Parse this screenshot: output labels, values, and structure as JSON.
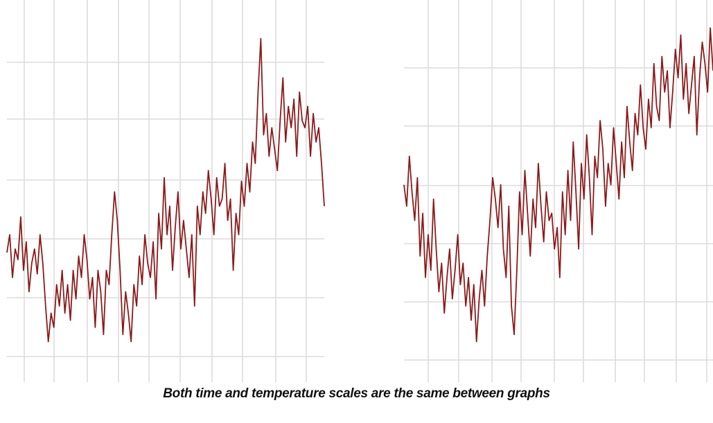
{
  "caption": "Both time and temperature scales are the same between graphs",
  "colors": {
    "series": "#8b1a1a",
    "grid": "#dcdcdc",
    "text": "#111111"
  },
  "chart_data": [
    {
      "type": "line",
      "title": "",
      "xlabel": "",
      "ylabel": "",
      "grid": true,
      "x": [
        0,
        1,
        2,
        3,
        4,
        5,
        6,
        7,
        8,
        9,
        10,
        11,
        12,
        13,
        14,
        15,
        16,
        17,
        18,
        19,
        20,
        21,
        22,
        23,
        24,
        25,
        26,
        27,
        28,
        29,
        30,
        31,
        32,
        33,
        34,
        35,
        36,
        37,
        38,
        39,
        40,
        41,
        42,
        43,
        44,
        45,
        46,
        47,
        48,
        49,
        50,
        51,
        52,
        53,
        54,
        55,
        56,
        57,
        58,
        59,
        60,
        61,
        62,
        63,
        64,
        65,
        66,
        67,
        68,
        69,
        70,
        71,
        72,
        73,
        74,
        75,
        76,
        77,
        78,
        79,
        80,
        81,
        82,
        83,
        84,
        85,
        86,
        87,
        88,
        89,
        90,
        91,
        92,
        93,
        94,
        95,
        96,
        97,
        98,
        99,
        100,
        101,
        102,
        103,
        104,
        105,
        106,
        107,
        108,
        109,
        110,
        111,
        112,
        113,
        114,
        115
      ],
      "xlim": [
        0,
        115
      ],
      "ylim": [
        0,
        100
      ],
      "series": [
        {
          "values": [
            35,
            40,
            28,
            36,
            33,
            45,
            30,
            38,
            24,
            32,
            36,
            29,
            40,
            32,
            20,
            10,
            18,
            14,
            26,
            20,
            30,
            18,
            26,
            16,
            30,
            22,
            34,
            28,
            40,
            33,
            22,
            28,
            14,
            30,
            24,
            12,
            30,
            26,
            40,
            52,
            44,
            30,
            12,
            24,
            18,
            10,
            26,
            20,
            34,
            26,
            40,
            32,
            28,
            38,
            22,
            46,
            36,
            56,
            40,
            48,
            30,
            42,
            52,
            36,
            44,
            36,
            28,
            40,
            20,
            48,
            40,
            52,
            46,
            58,
            50,
            40,
            56,
            48,
            50,
            60,
            44,
            50,
            30,
            46,
            40,
            55,
            48,
            60,
            52,
            66,
            60,
            80,
            95,
            68,
            74,
            62,
            70,
            64,
            58,
            72,
            84,
            66,
            76,
            70,
            78,
            62,
            80,
            72,
            70,
            76,
            62,
            74,
            66,
            70,
            60,
            48
          ]
        }
      ]
    },
    {
      "type": "line",
      "title": "",
      "xlabel": "",
      "ylabel": "",
      "grid": true,
      "x": [
        0,
        1,
        2,
        3,
        4,
        5,
        6,
        7,
        8,
        9,
        10,
        11,
        12,
        13,
        14,
        15,
        16,
        17,
        18,
        19,
        20,
        21,
        22,
        23,
        24,
        25,
        26,
        27,
        28,
        29,
        30,
        31,
        32,
        33,
        34,
        35,
        36,
        37,
        38,
        39,
        40,
        41,
        42,
        43,
        44,
        45,
        46,
        47,
        48,
        49,
        50,
        51,
        52,
        53,
        54,
        55,
        56,
        57,
        58,
        59,
        60,
        61,
        62,
        63,
        64,
        65,
        66,
        67,
        68,
        69,
        70,
        71,
        72,
        73,
        74,
        75,
        76,
        77,
        78,
        79,
        80,
        81,
        82,
        83,
        84,
        85,
        86,
        87,
        88,
        89,
        90,
        91,
        92,
        93,
        94,
        95,
        96,
        97,
        98,
        99,
        100,
        101,
        102,
        103,
        104,
        105,
        106,
        107,
        108,
        109,
        110,
        111,
        112,
        113,
        114,
        115
      ],
      "xlim": [
        0,
        115
      ],
      "ylim": [
        0,
        100
      ],
      "series": [
        {
          "values": [
            54,
            48,
            62,
            52,
            44,
            56,
            34,
            46,
            28,
            40,
            30,
            50,
            36,
            24,
            32,
            18,
            28,
            36,
            22,
            30,
            40,
            26,
            32,
            20,
            28,
            16,
            26,
            10,
            22,
            30,
            20,
            34,
            44,
            56,
            50,
            42,
            54,
            36,
            28,
            48,
            20,
            12,
            30,
            52,
            40,
            58,
            46,
            34,
            50,
            42,
            60,
            48,
            38,
            52,
            44,
            46,
            36,
            42,
            28,
            52,
            40,
            58,
            44,
            66,
            52,
            36,
            60,
            50,
            68,
            56,
            40,
            62,
            56,
            72,
            64,
            48,
            60,
            54,
            70,
            60,
            50,
            66,
            56,
            76,
            66,
            58,
            74,
            68,
            82,
            70,
            64,
            78,
            70,
            88,
            76,
            72,
            90,
            80,
            86,
            70,
            80,
            92,
            84,
            96,
            78,
            88,
            74,
            82,
            90,
            68,
            84,
            94,
            88,
            80,
            98,
            86
          ]
        }
      ]
    }
  ]
}
